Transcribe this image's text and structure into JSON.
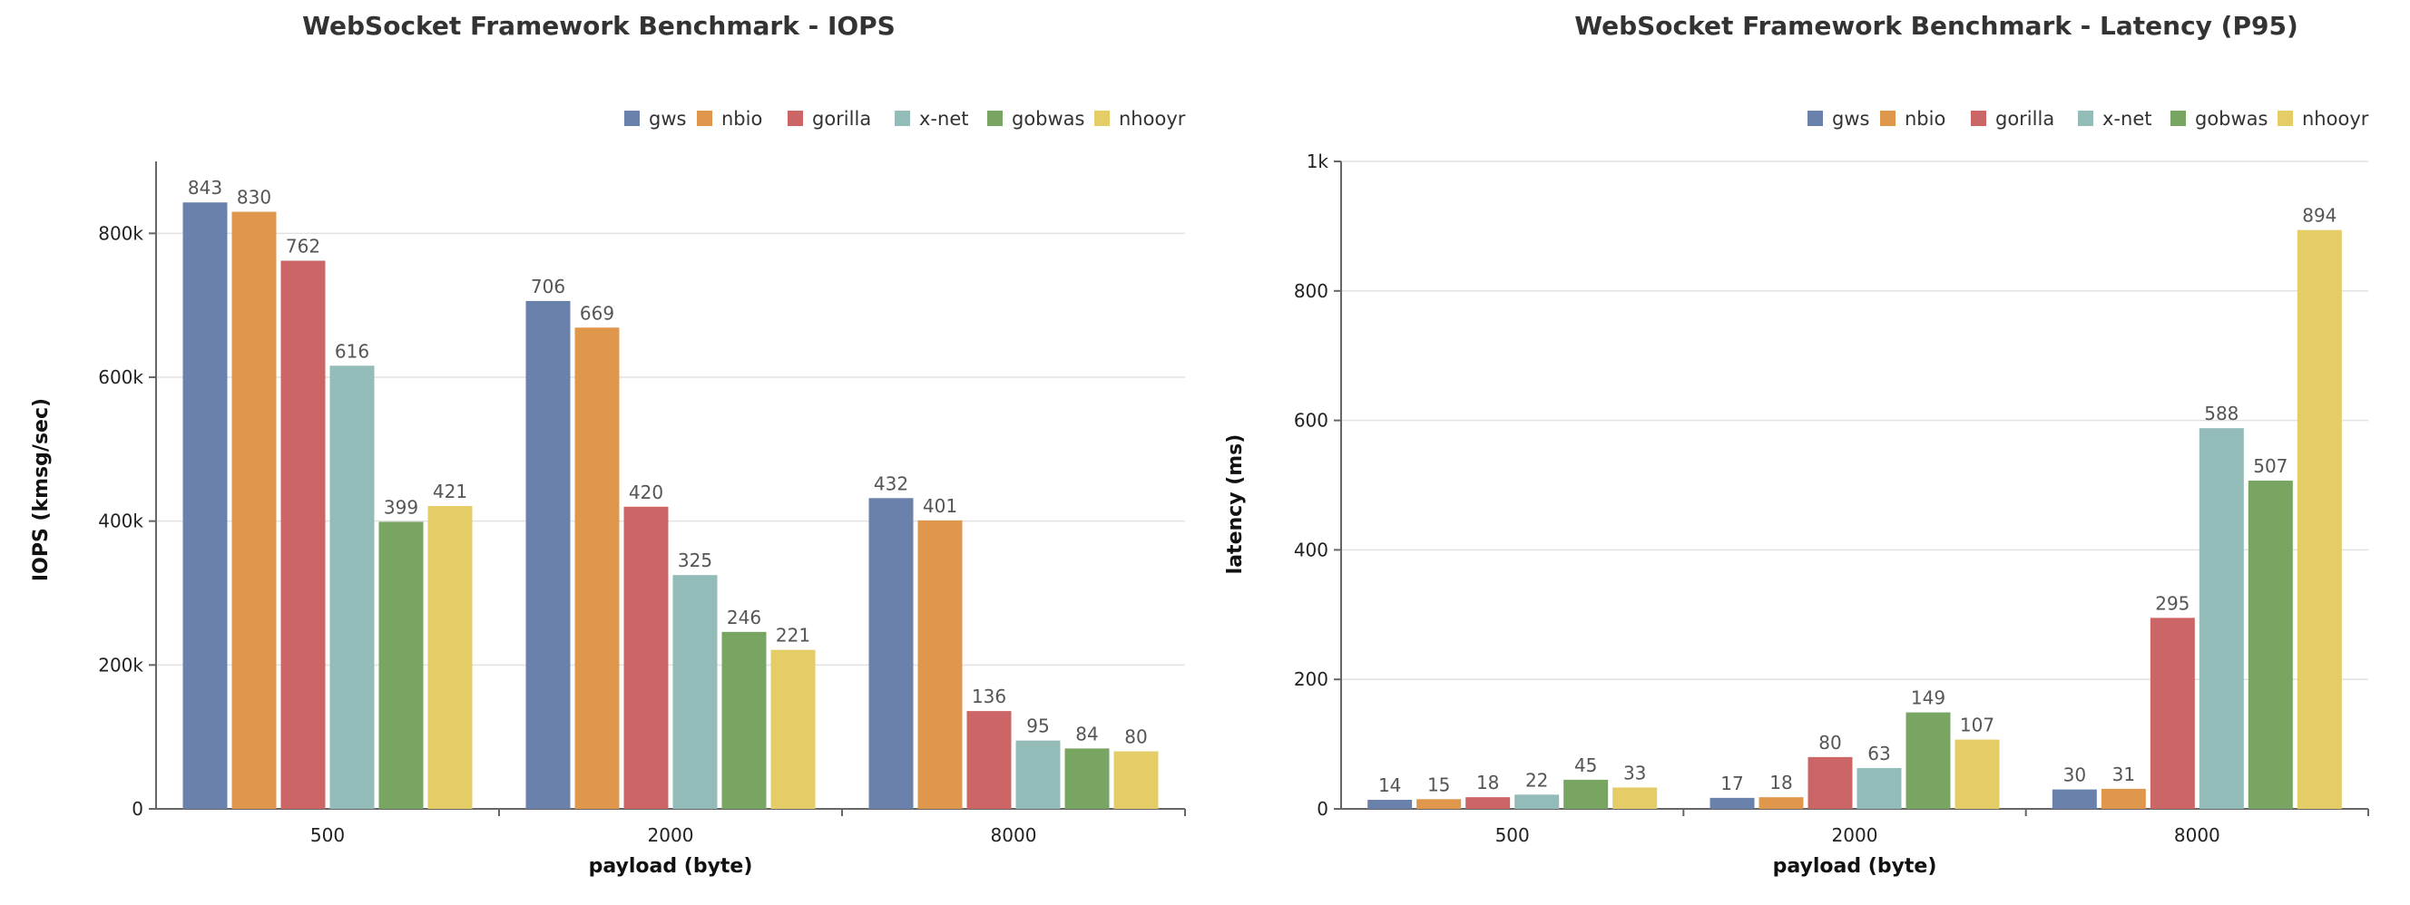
{
  "chart_data": [
    {
      "type": "bar",
      "title": "WebSocket Framework Benchmark - IOPS",
      "xlabel": "payload (byte)",
      "ylabel": "IOPS (kmsg/sec)",
      "categories": [
        "500",
        "2000",
        "8000"
      ],
      "ylim": [
        0,
        900000
      ],
      "yticks": [
        0,
        200000,
        400000,
        600000,
        800000
      ],
      "ytick_labels": [
        "0",
        "200k",
        "400k",
        "600k",
        "800k"
      ],
      "grid": true,
      "legend_position": "top-right",
      "value_scale": 1000,
      "series": [
        {
          "name": "gws",
          "color": "#6a82ab",
          "values": [
            843,
            706,
            432
          ]
        },
        {
          "name": "nbio",
          "color": "#df974c",
          "values": [
            830,
            669,
            401
          ]
        },
        {
          "name": "gorilla",
          "color": "#cc6666",
          "values": [
            762,
            420,
            136
          ]
        },
        {
          "name": "x-net",
          "color": "#93bbb8",
          "values": [
            616,
            325,
            95
          ]
        },
        {
          "name": "gobwas",
          "color": "#79a562",
          "values": [
            399,
            246,
            84
          ]
        },
        {
          "name": "nhooyr",
          "color": "#e4cc67",
          "values": [
            421,
            221,
            80
          ]
        }
      ]
    },
    {
      "type": "bar",
      "title": "WebSocket Framework Benchmark - Latency (P95)",
      "xlabel": "payload (byte)",
      "ylabel": "latency (ms)",
      "categories": [
        "500",
        "2000",
        "8000"
      ],
      "ylim": [
        0,
        1000
      ],
      "yticks": [
        0,
        200,
        400,
        600,
        800,
        1000
      ],
      "ytick_labels": [
        "0",
        "200",
        "400",
        "600",
        "800",
        "1k"
      ],
      "grid": true,
      "legend_position": "top-right",
      "value_scale": 1,
      "series": [
        {
          "name": "gws",
          "color": "#6a82ab",
          "values": [
            14,
            17,
            30
          ]
        },
        {
          "name": "nbio",
          "color": "#df974c",
          "values": [
            15,
            18,
            31
          ]
        },
        {
          "name": "gorilla",
          "color": "#cc6666",
          "values": [
            18,
            80,
            295
          ]
        },
        {
          "name": "x-net",
          "color": "#93bbb8",
          "values": [
            22,
            63,
            588
          ]
        },
        {
          "name": "gobwas",
          "color": "#79a562",
          "values": [
            45,
            149,
            507
          ]
        },
        {
          "name": "nhooyr",
          "color": "#e4cc67",
          "values": [
            33,
            107,
            894
          ]
        }
      ]
    }
  ]
}
